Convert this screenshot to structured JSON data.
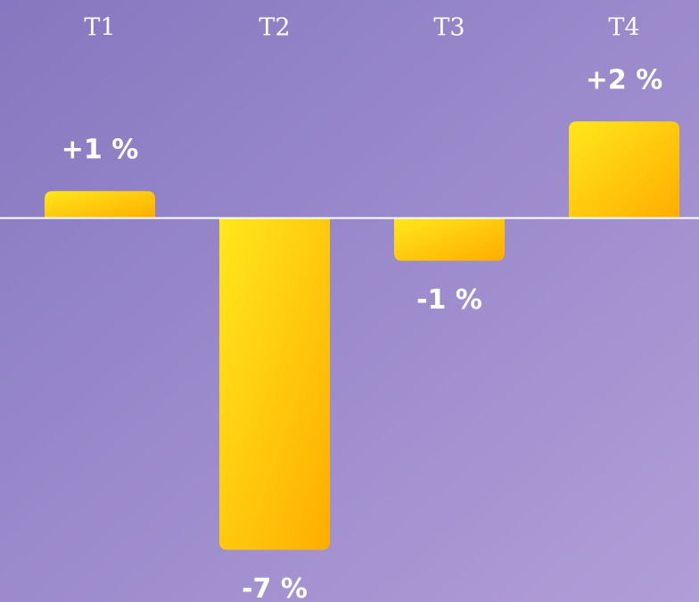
{
  "chart_data": {
    "type": "bar",
    "categories": [
      "T1",
      "T2",
      "T3",
      "T4"
    ],
    "values": [
      0.57,
      -7,
      -0.9,
      2.04
    ],
    "value_labels": [
      "+1 %",
      "-7 %",
      "-1 %",
      "+2 %"
    ],
    "color": "#ffc40d",
    "ylim": [
      -8.1,
      4.6
    ]
  }
}
